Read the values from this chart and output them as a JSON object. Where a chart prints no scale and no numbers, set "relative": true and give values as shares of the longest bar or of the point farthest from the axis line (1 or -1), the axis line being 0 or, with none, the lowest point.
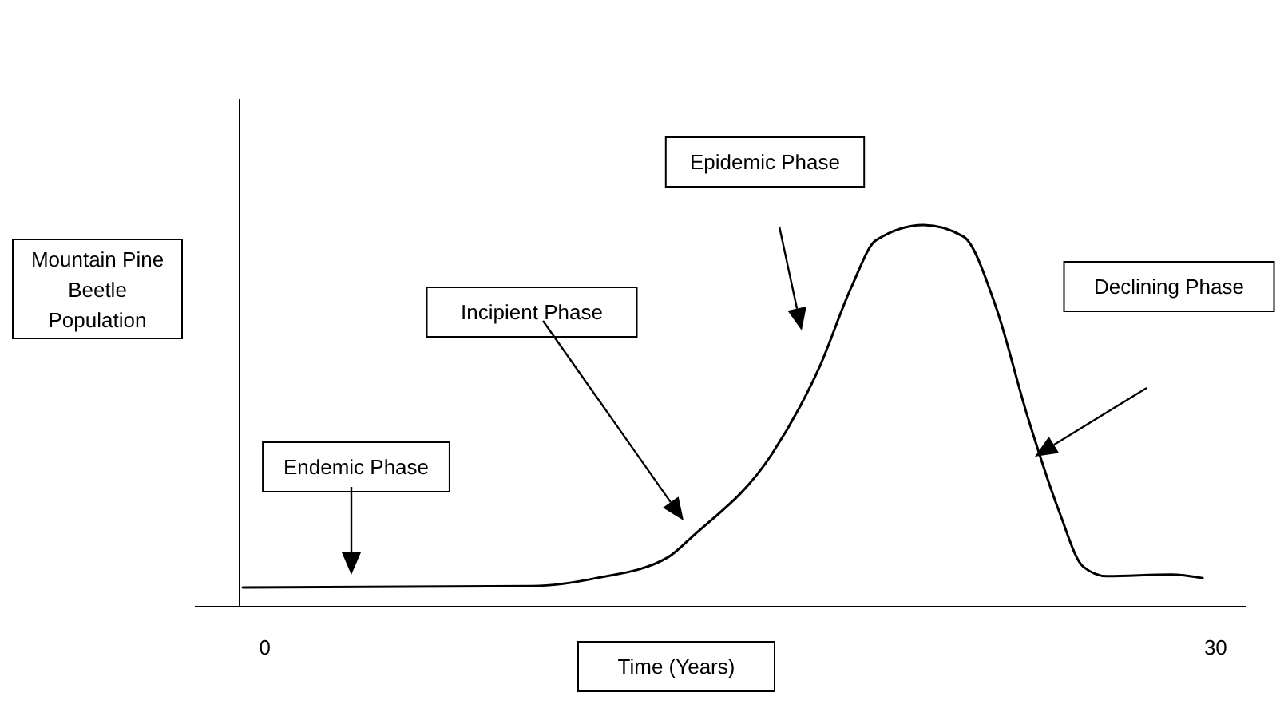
{
  "chart_data": {
    "type": "line",
    "relative": true,
    "xlabel": "Time (Years)",
    "ylabel": "Mountain Pine Beetle Population",
    "xlim": [
      -0.8,
      31.1
    ],
    "xticks": [
      0,
      30
    ],
    "grid": false,
    "marker": "none",
    "line_style": "solid",
    "series": [
      {
        "color": "#000000",
        "x": [
          -0.7,
          8.45,
          10.47,
          12.73,
          13.49,
          16.0,
          17.51,
          18.52,
          19.28,
          20.79,
          22.04,
          23.05,
          24.06,
          25.06,
          25.82,
          26.57,
          28.59,
          29.59
        ],
        "values": [
          0.05,
          0.054,
          0.075,
          0.13,
          0.184,
          0.4,
          0.63,
          0.84,
          0.96,
          1,
          0.97,
          0.79,
          0.5,
          0.25,
          0.105,
          0.08,
          0.084,
          0.075
        ]
      }
    ],
    "annotations": [
      "Endemic Phase",
      "Incipient Phase",
      "Epidemic Phase",
      "Declining Phase"
    ]
  }
}
